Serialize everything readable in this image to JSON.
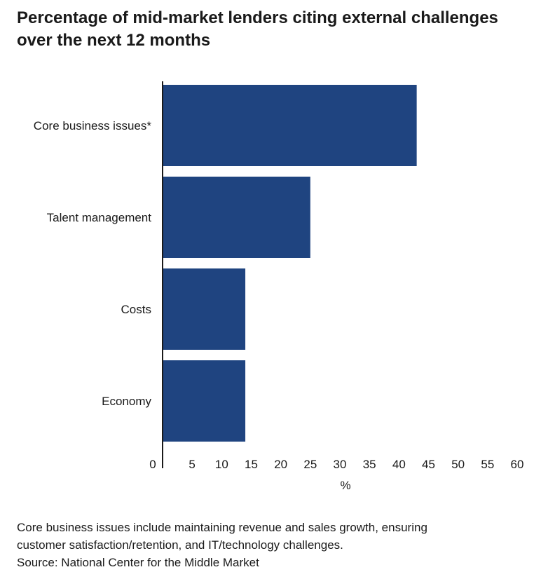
{
  "title_lines": [
    "Percentage of mid-market lenders citing external challenges",
    "over the next 12 months"
  ],
  "chart_data": {
    "type": "bar",
    "orientation": "horizontal",
    "title": "Percentage of mid-market lenders citing external challenges over the next 12 months",
    "categories": [
      "Core business issues*",
      "Talent management",
      "Costs",
      "Economy"
    ],
    "values": [
      43,
      25,
      14,
      14
    ],
    "xlabel": "%",
    "xlim": [
      0,
      60
    ],
    "xticks": [
      0,
      5,
      10,
      15,
      20,
      25,
      30,
      35,
      40,
      45,
      50,
      55,
      60
    ],
    "grid": false,
    "bar_color": "#1f4480"
  },
  "notes": {
    "footnote_line1": "Core business issues include maintaining revenue and sales growth, ensuring",
    "footnote_line2": "customer satisfaction/retention, and IT/technology challenges.",
    "source": "Source: National Center for the Middle Market"
  }
}
